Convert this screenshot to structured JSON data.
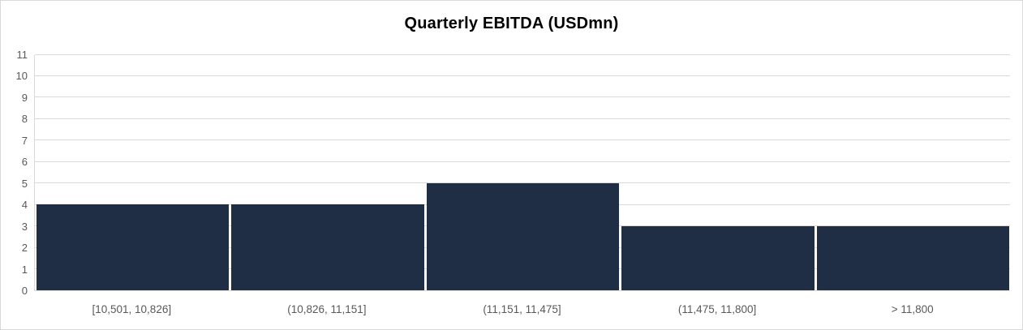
{
  "chart_data": {
    "type": "bar",
    "title": "Quarterly EBITDA (USDmn)",
    "categories": [
      "[10,501, 10,826]",
      "(10,826, 11,151]",
      "(11,151, 11,475]",
      "(11,475, 11,800]",
      "> 11,800"
    ],
    "values": [
      4,
      4,
      5,
      3,
      3
    ],
    "xlabel": "",
    "ylabel": "",
    "ylim": [
      0,
      11
    ],
    "ytick_interval": 1,
    "yticks": [
      0,
      1,
      2,
      3,
      4,
      5,
      6,
      7,
      8,
      9,
      10,
      11
    ],
    "grid": true,
    "legend": false,
    "colors": {
      "bar_fill": "#1f2e45",
      "gridline": "#d9d9d9",
      "axis_line": "#d9d9d9",
      "tick_label": "#595959",
      "title": "#000000",
      "chart_border": "#d9d9d9",
      "background": "#ffffff"
    }
  }
}
